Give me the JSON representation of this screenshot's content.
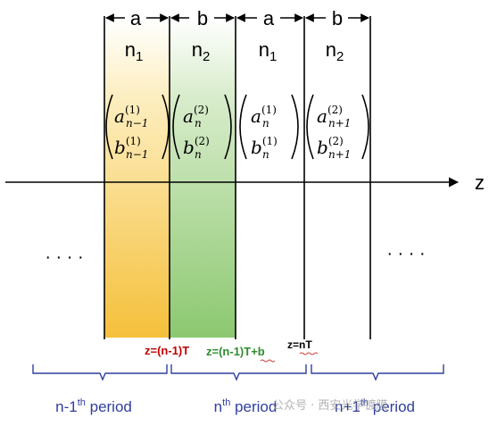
{
  "layers": [
    {
      "width_label": "a",
      "index_label": "n",
      "index_sub": "1",
      "top_sym": "a",
      "top_sup": "(1)",
      "top_sub": "n−1",
      "bot_sym": "b",
      "bot_sup": "(1)",
      "bot_sub": "n−1"
    },
    {
      "width_label": "b",
      "index_label": "n",
      "index_sub": "2",
      "top_sym": "a",
      "top_sup": "(2)",
      "top_sub": "n",
      "bot_sym": "b",
      "bot_sup": "(2)",
      "bot_sub": "n"
    },
    {
      "width_label": "a",
      "index_label": "n",
      "index_sub": "1",
      "top_sym": "a",
      "top_sup": "(1)",
      "top_sub": "n",
      "bot_sym": "b",
      "bot_sup": "(1)",
      "bot_sub": "n"
    },
    {
      "width_label": "b",
      "index_label": "n",
      "index_sub": "2",
      "top_sym": "a",
      "top_sup": "(2)",
      "top_sub": "n+1",
      "bot_sym": "b",
      "bot_sup": "(2)",
      "bot_sub": "n+1"
    }
  ],
  "axis_label": "z",
  "ellipsis": "· · · ·",
  "boundaries": {
    "left": {
      "text": "z=(n-1)T",
      "color": "#c00000"
    },
    "middle": {
      "text": "z=(n-1)T+b",
      "color": "#2e8b2e"
    },
    "right": {
      "text": "z=nT",
      "color": "#000000"
    }
  },
  "periods": {
    "prev": {
      "base": "n-1",
      "sup": "th",
      "word": " period"
    },
    "curr": {
      "base": "n",
      "sup": "th",
      "word": " period"
    },
    "next": {
      "base": "n+1",
      "sup": "th",
      "word": " period"
    }
  },
  "watermark": "公众号 · 西安光学镀膜",
  "colors": {
    "bracket": "#2f3e9e",
    "yellow": "#f6c23f",
    "green": "#8fca74"
  }
}
